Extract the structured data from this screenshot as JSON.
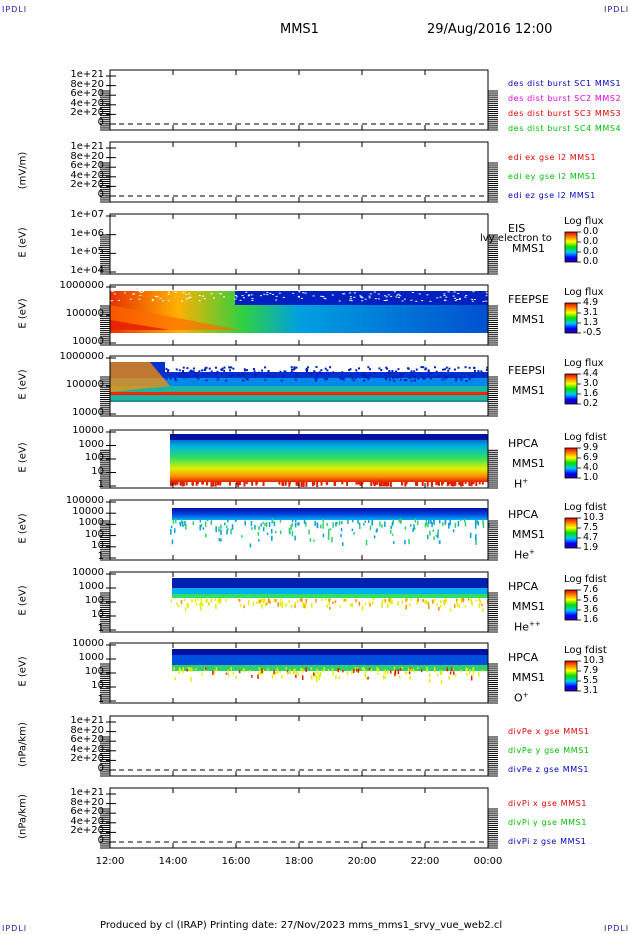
{
  "corners": {
    "tl": "IPDLI",
    "tr": "IPDLI",
    "bl": "IPDLI",
    "br": "IPDLI"
  },
  "header": {
    "mission": "MMS1",
    "datetime": "29/Aug/2016 12:00"
  },
  "footer": {
    "text": "Produced by cl (IRAP)   Printing date: 27/Nov/2023   mms_mms1_srvy_vue_web2.cl"
  },
  "x_ticks": [
    "12:00",
    "14:00",
    "16:00",
    "18:00",
    "20:00",
    "22:00",
    "00:00"
  ],
  "colors": {
    "red": "#e00000",
    "magenta": "#e000e0",
    "green": "#00c000",
    "blue": "#0000c0"
  },
  "chart_data": [
    {
      "type": "line",
      "panel": "des dist burst",
      "ylabel": "",
      "yticks": [
        "1e+21",
        "8e+20",
        "6e+20",
        "4e+20",
        "2e+20",
        "0"
      ],
      "ylim": [
        0,
        1.2e+21
      ],
      "series": [
        {
          "name": "des dist burst SC1 MMS1",
          "color": "blue"
        },
        {
          "name": "des dist burst SC2 MMS2",
          "color": "magenta"
        },
        {
          "name": "des dist burst SC3 MMS3",
          "color": "red"
        },
        {
          "name": "des dist burst SC4 MMS4",
          "color": "green"
        }
      ]
    },
    {
      "type": "line",
      "panel": "edi",
      "ylabel": "(mV/m)",
      "yticks": [
        "1e+21",
        "8e+20",
        "6e+20",
        "4e+20",
        "2e+20",
        "0"
      ],
      "ylim": [
        0,
        1.2e+21
      ],
      "series": [
        {
          "name": "edi ex gse l2 MMS1",
          "color": "red"
        },
        {
          "name": "edi ey gse l2 MMS1",
          "color": "green"
        },
        {
          "name": "edi ez gse l2 MMS1",
          "color": "blue"
        }
      ]
    },
    {
      "type": "heatmap",
      "panel": "EIS",
      "ylabel": "E (eV)",
      "yticks": [
        "1e+07",
        "1e+06",
        "1e+05",
        "1e+04"
      ],
      "labels": [
        "EIS",
        "MMS1"
      ],
      "overlay": "lvy electron to",
      "colorbar": {
        "title": "Log flux",
        "values": [
          "0.0",
          "0.0",
          "0.0",
          "0.0"
        ]
      }
    },
    {
      "type": "heatmap",
      "panel": "FEEPSE",
      "ylabel": "E (eV)",
      "yticks": [
        "1000000",
        "100000",
        "10000"
      ],
      "labels": [
        "FEEPSE",
        "MMS1"
      ],
      "colorbar": {
        "title": "Log flux",
        "values": [
          "4.9",
          "3.1",
          "1.3",
          "-0.5"
        ]
      }
    },
    {
      "type": "heatmap",
      "panel": "FEEPSI",
      "ylabel": "E (eV)",
      "yticks": [
        "1000000",
        "100000",
        "10000"
      ],
      "labels": [
        "FEEPSI",
        "MMS1"
      ],
      "colorbar": {
        "title": "Log flux",
        "values": [
          "4.4",
          "3.0",
          "1.6",
          "0.2"
        ]
      }
    },
    {
      "type": "heatmap",
      "panel": "HPCA H+",
      "ylabel": "E (eV)",
      "yticks": [
        "10000",
        "1000",
        "100",
        "10",
        "1"
      ],
      "labels": [
        "HPCA",
        "MMS1"
      ],
      "species": "H",
      "charge": "+",
      "colorbar": {
        "title": "Log fdist",
        "values": [
          "9.9",
          "6.9",
          "4.0",
          "1.0"
        ]
      }
    },
    {
      "type": "heatmap",
      "panel": "HPCA He+",
      "ylabel": "E (eV)",
      "yticks": [
        "100000",
        "10000",
        "1000",
        "100",
        "10",
        "1"
      ],
      "labels": [
        "HPCA",
        "MMS1"
      ],
      "species": "He",
      "charge": "+",
      "colorbar": {
        "title": "Log fdist",
        "values": [
          "10.3",
          "7.5",
          "4.7",
          "1.9"
        ]
      }
    },
    {
      "type": "heatmap",
      "panel": "HPCA He++",
      "ylabel": "E (eV)",
      "yticks": [
        "10000",
        "1000",
        "100",
        "10",
        "1"
      ],
      "labels": [
        "HPCA",
        "MMS1"
      ],
      "species": "He",
      "charge": "++",
      "colorbar": {
        "title": "Log fdist",
        "values": [
          "7.6",
          "5.6",
          "3.6",
          "1.6"
        ]
      }
    },
    {
      "type": "heatmap",
      "panel": "HPCA O+",
      "ylabel": "E (eV)",
      "yticks": [
        "10000",
        "1000",
        "100",
        "10",
        "1"
      ],
      "labels": [
        "HPCA",
        "MMS1"
      ],
      "species": "O",
      "charge": "+",
      "colorbar": {
        "title": "Log fdist",
        "values": [
          "10.3",
          "7.9",
          "5.5",
          "3.1"
        ]
      }
    },
    {
      "type": "line",
      "panel": "divPe",
      "ylabel": "(nPa/km)",
      "yticks": [
        "1e+21",
        "8e+20",
        "6e+20",
        "4e+20",
        "2e+20",
        "0"
      ],
      "ylim": [
        0,
        1.2e+21
      ],
      "series": [
        {
          "name": "divPe x gse MMS1",
          "color": "red"
        },
        {
          "name": "divPe y gse MMS1",
          "color": "green"
        },
        {
          "name": "divPe z gse MMS1",
          "color": "blue"
        }
      ]
    },
    {
      "type": "line",
      "panel": "divPi",
      "ylabel": "(nPa/km)",
      "yticks": [
        "1e+21",
        "8e+20",
        "6e+20",
        "4e+20",
        "2e+20",
        "0"
      ],
      "ylim": [
        0,
        1.2e+21
      ],
      "series": [
        {
          "name": "divPi x gse MMS1",
          "color": "red"
        },
        {
          "name": "divPi y gse MMS1",
          "color": "green"
        },
        {
          "name": "divPi z gse MMS1",
          "color": "blue"
        }
      ]
    }
  ]
}
